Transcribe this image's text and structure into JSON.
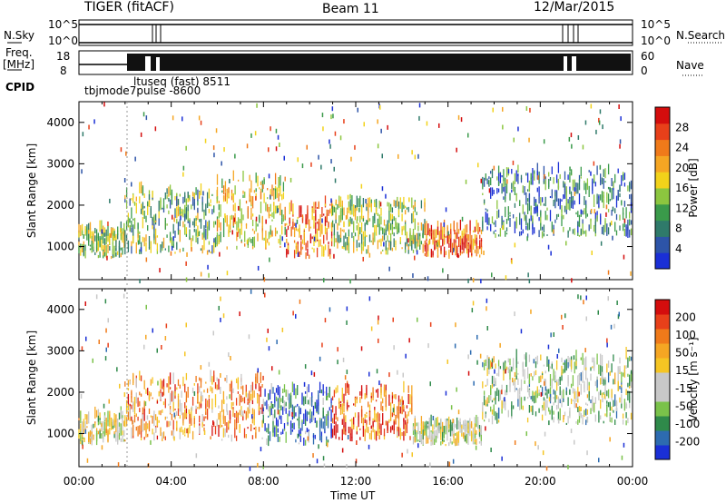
{
  "header": {
    "title": "TIGER (fitACF)",
    "beam": "Beam 11",
    "date": "12/Mar/2015"
  },
  "param_panels": {
    "nsky_label": "N.Sky",
    "nsky_ticks": [
      "10^5",
      "10^0"
    ],
    "nsearch_label": "N.Search",
    "freq_label": "Freq.",
    "freq_unit": "[MHz]",
    "freq_ticks": [
      "18",
      "8"
    ],
    "nave_ticks": [
      "60",
      "0"
    ],
    "nave_label": "Nave",
    "cpid_label": "CPID",
    "cpid_entries": [
      "ltuseq (fast) 8511",
      "tbjmode7pulse -8600"
    ]
  },
  "chart_data": [
    {
      "type": "heatmap",
      "name": "power",
      "ylabel": "Slant Range [km]",
      "ylim": [
        200,
        4500
      ],
      "yticks": [
        1000,
        2000,
        3000,
        4000
      ],
      "colorbar": {
        "label": "Power [dB]",
        "ticks": [
          "4",
          "8",
          "12",
          "16",
          "20",
          "24",
          "28"
        ],
        "colors": [
          "#1a2fd6",
          "#2d54a8",
          "#2f7a6a",
          "#3a9a4a",
          "#8cc63f",
          "#f2d21a",
          "#f5a623",
          "#f07a1a",
          "#e8401a",
          "#d40d0d"
        ]
      },
      "echo_regions": [
        {
          "t0": 0.0,
          "t1": 2.0,
          "r0": 700,
          "r1": 1400,
          "level": 0.45
        },
        {
          "t0": 2.0,
          "t1": 6.0,
          "r0": 800,
          "r1": 2300,
          "level": 0.4
        },
        {
          "t0": 6.0,
          "t1": 9.0,
          "r0": 900,
          "r1": 2600,
          "level": 0.55
        },
        {
          "t0": 9.0,
          "t1": 11.0,
          "r0": 700,
          "r1": 2000,
          "level": 0.75
        },
        {
          "t0": 11.0,
          "t1": 15.0,
          "r0": 800,
          "r1": 2000,
          "level": 0.45
        },
        {
          "t0": 15.0,
          "t1": 17.5,
          "r0": 700,
          "r1": 1400,
          "level": 0.8
        },
        {
          "t0": 17.5,
          "t1": 24.0,
          "r0": 1200,
          "r1": 2800,
          "level": 0.25
        }
      ]
    },
    {
      "type": "heatmap",
      "name": "velocity",
      "ylabel": "Slant Range [km]",
      "xlabel": "Time UT",
      "ylim": [
        200,
        4500
      ],
      "yticks": [
        1000,
        2000,
        3000,
        4000
      ],
      "xlim": [
        0,
        24
      ],
      "xticks": [
        "00:00",
        "04:00",
        "08:00",
        "12:00",
        "16:00",
        "20:00",
        "00:00"
      ],
      "colorbar": {
        "label": "Velocity [m s⁻¹]",
        "ticks": [
          "200",
          "100",
          "50",
          "15",
          "-15",
          "-50",
          "-100",
          "-200"
        ],
        "colors": [
          "#1a2fd6",
          "#2d6bb0",
          "#2f8a4a",
          "#7ac24a",
          "#c8c8c8",
          "#c8c8c8",
          "#f5c523",
          "#f5a623",
          "#f07a1a",
          "#e8401a",
          "#d40d0d"
        ]
      },
      "echo_regions": [
        {
          "t0": 0.0,
          "t1": 2.0,
          "r0": 700,
          "r1": 1400,
          "level": 0.5
        },
        {
          "t0": 2.0,
          "t1": 8.0,
          "r0": 800,
          "r1": 2300,
          "level": 0.7
        },
        {
          "t0": 8.0,
          "t1": 11.0,
          "r0": 700,
          "r1": 2000,
          "level": 0.15
        },
        {
          "t0": 11.0,
          "t1": 14.5,
          "r0": 800,
          "r1": 2000,
          "level": 0.8
        },
        {
          "t0": 14.5,
          "t1": 17.5,
          "r0": 700,
          "r1": 1200,
          "level": 0.45
        },
        {
          "t0": 17.5,
          "t1": 24.0,
          "r0": 1200,
          "r1": 2800,
          "level": 0.4
        }
      ]
    }
  ]
}
